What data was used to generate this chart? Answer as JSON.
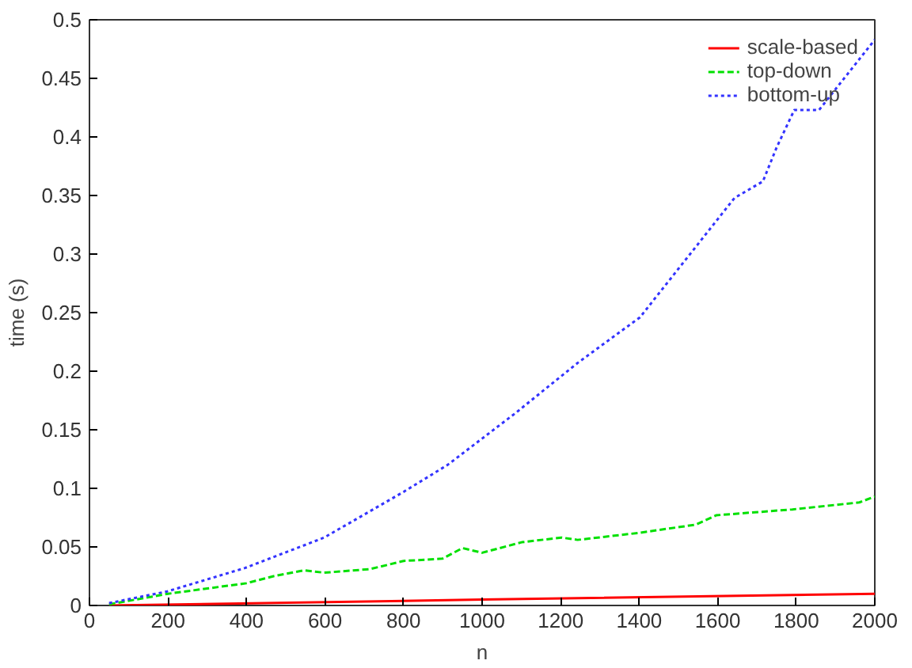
{
  "chart_data": {
    "type": "line",
    "xlabel": "n",
    "ylabel": "time (s)",
    "xlim": [
      0,
      2000
    ],
    "ylim": [
      0,
      0.5
    ],
    "xticks": [
      0,
      200,
      400,
      600,
      800,
      1000,
      1200,
      1400,
      1600,
      1800,
      2000
    ],
    "yticks": [
      0,
      0.05,
      0.1,
      0.15,
      0.2,
      0.25,
      0.3,
      0.35,
      0.4,
      0.45,
      0.5
    ],
    "grid": false,
    "legend": "top right",
    "marker": "none",
    "series": [
      {
        "name": "scale-based",
        "color": "#ff0000",
        "line_style": "solid",
        "x": [
          50,
          1000,
          2000
        ],
        "values": [
          0.0,
          0.005,
          0.01
        ]
      },
      {
        "name": "top-down",
        "color": "#00e000",
        "line_style": "dashed",
        "x": [
          50,
          200,
          400,
          469,
          546,
          598,
          714,
          800,
          899,
          950,
          1000,
          1101,
          1202,
          1243,
          1400,
          1544,
          1596,
          1790,
          1961,
          2000
        ],
        "values": [
          0.001,
          0.01,
          0.019,
          0.025,
          0.03,
          0.028,
          0.031,
          0.038,
          0.04,
          0.049,
          0.045,
          0.054,
          0.058,
          0.056,
          0.062,
          0.069,
          0.077,
          0.082,
          0.088,
          0.093
        ]
      },
      {
        "name": "bottom-up",
        "color": "#3333ff",
        "line_style": "dotted",
        "x": [
          50,
          198,
          396,
          598,
          800,
          912,
          1084,
          1243,
          1402,
          1643,
          1715,
          1750,
          1795,
          1858,
          2000
        ],
        "values": [
          0.002,
          0.012,
          0.032,
          0.058,
          0.097,
          0.12,
          0.164,
          0.207,
          0.246,
          0.348,
          0.362,
          0.391,
          0.423,
          0.423,
          0.483
        ]
      }
    ]
  }
}
